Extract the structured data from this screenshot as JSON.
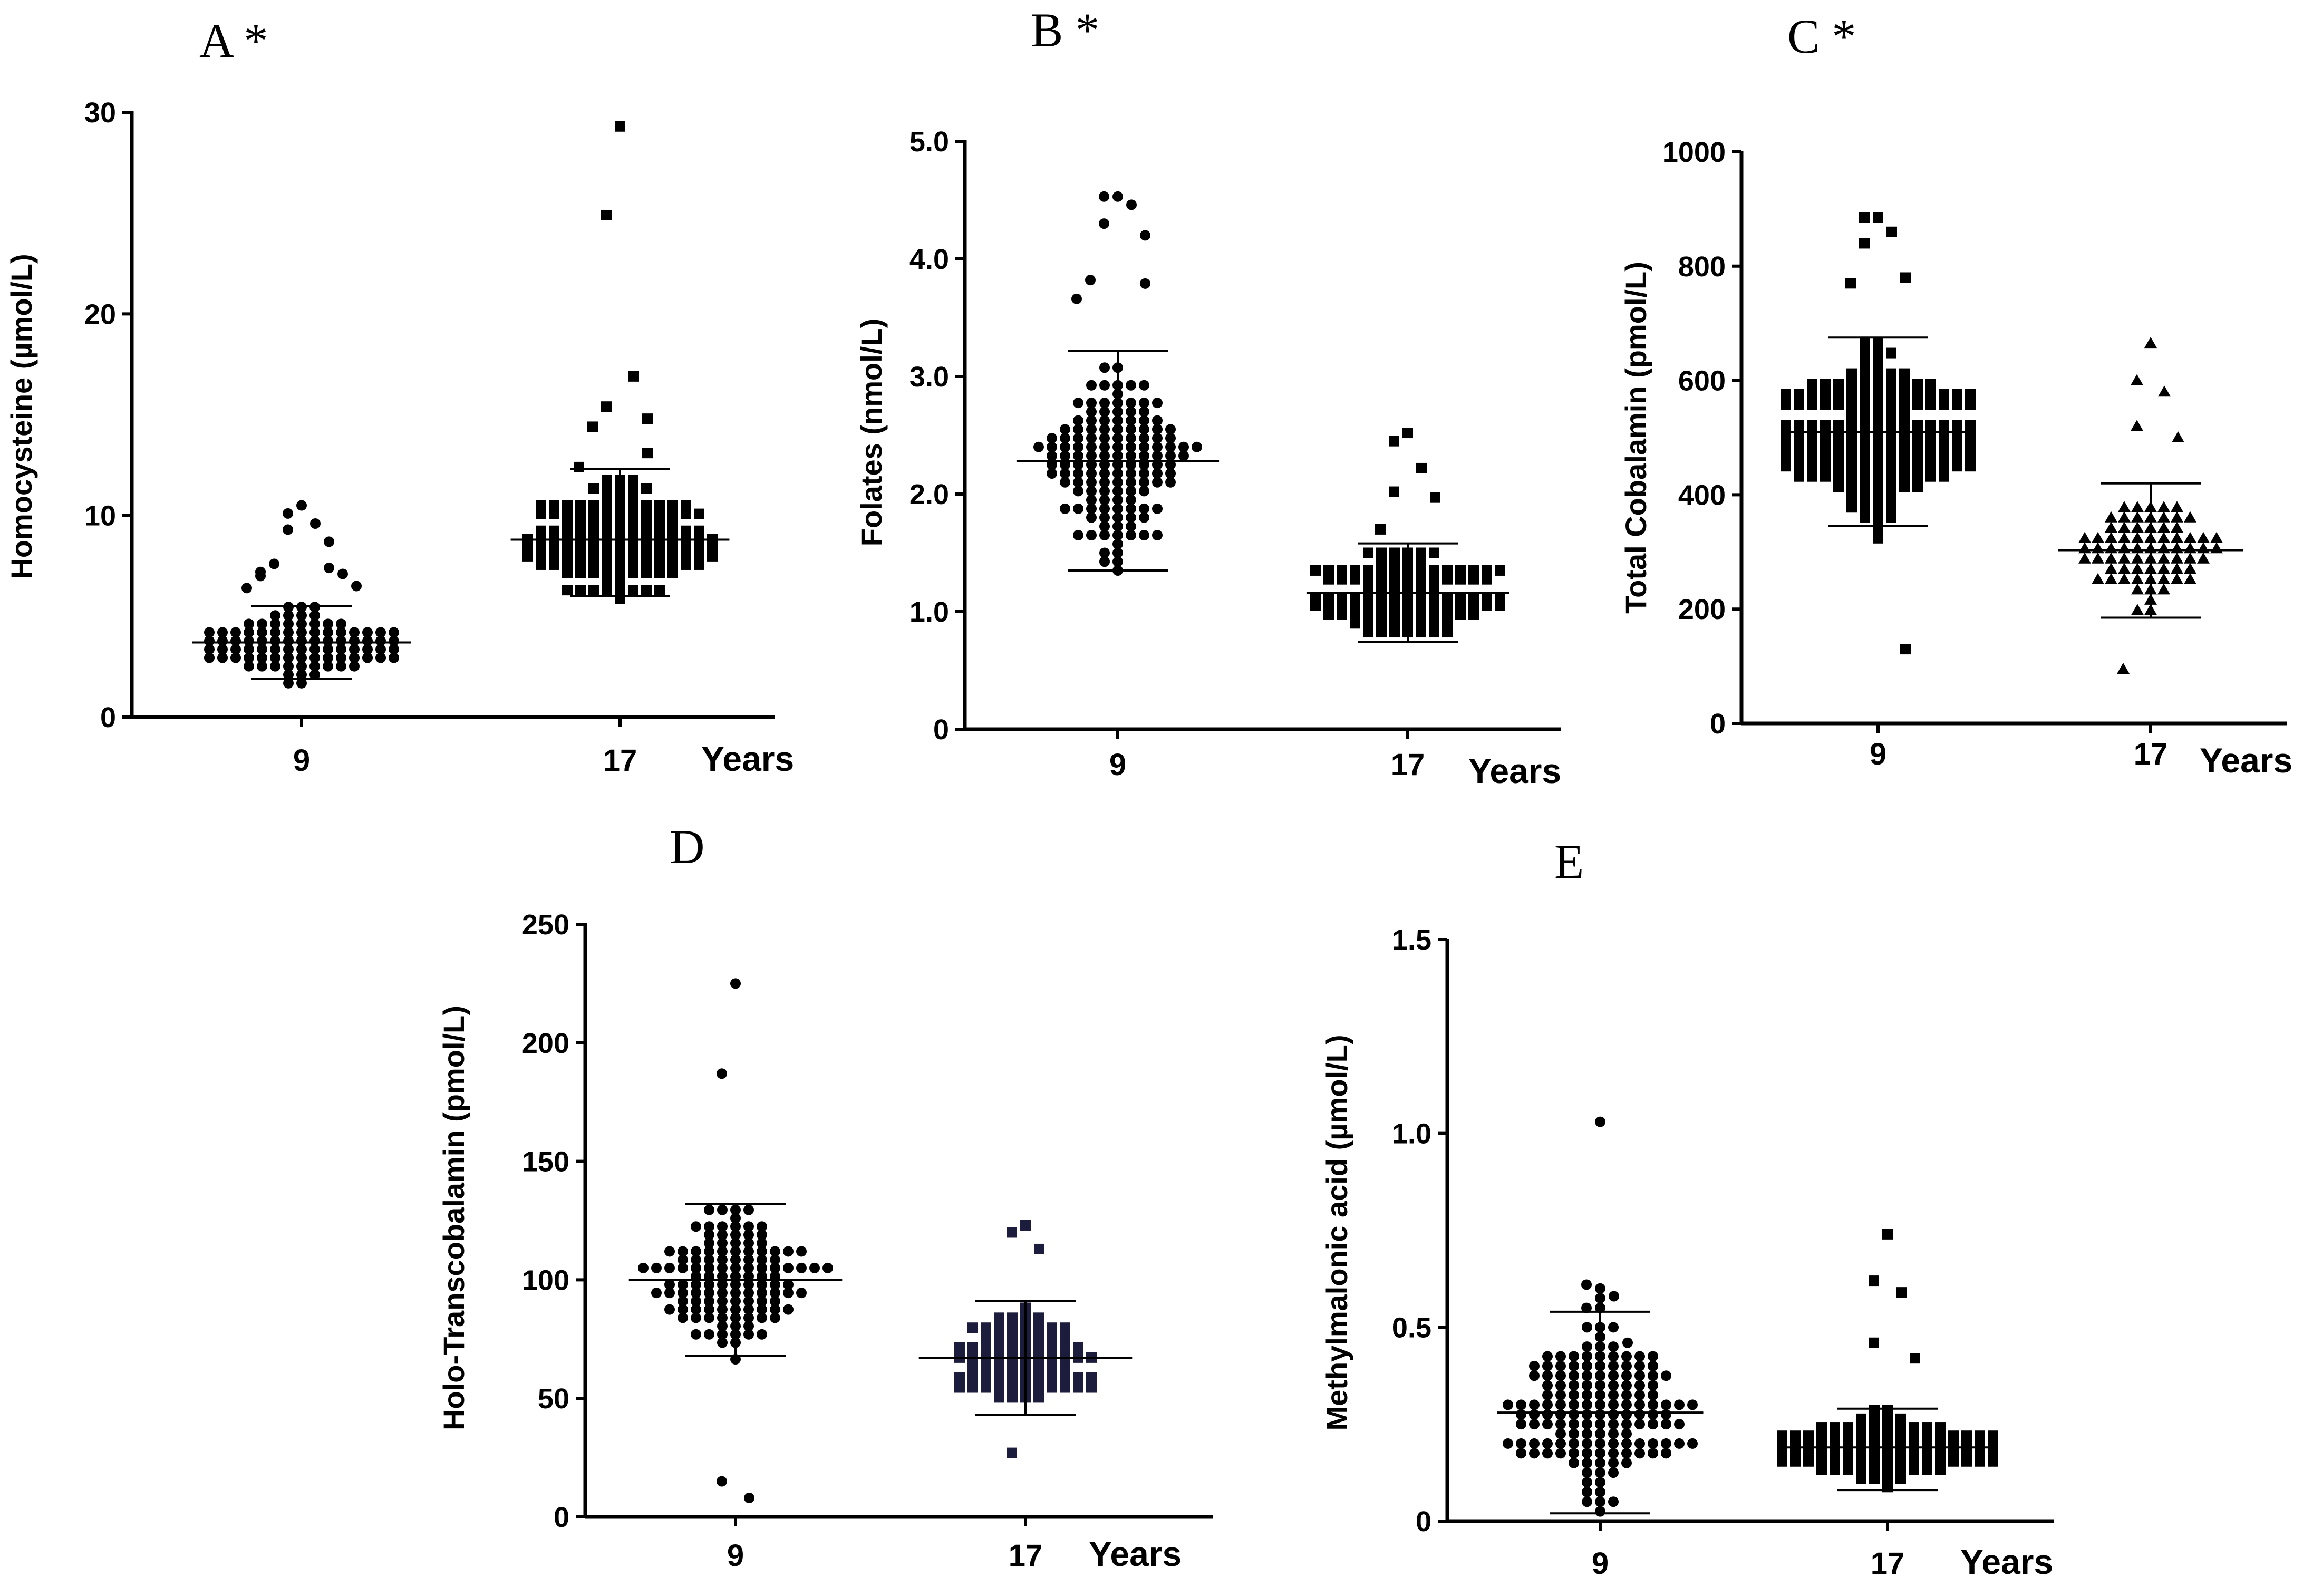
{
  "chart_data": [
    {
      "id": "A",
      "type": "scatter",
      "panel_label": "A *",
      "ylabel": "Homocysteine (µmol/L)",
      "xlabel": "Years",
      "ylim": [
        0,
        30
      ],
      "yticks": [
        0,
        10,
        20,
        30
      ],
      "ytick_labels": [
        "0",
        "10",
        "20",
        "30"
      ],
      "categories": [
        "9",
        "17"
      ],
      "marker_colors": [
        "#000000",
        "#000000"
      ],
      "series": [
        {
          "name": "9",
          "marker": "circle",
          "mean": 3.7,
          "sd_low": 1.9,
          "sd_high": 5.5,
          "values": [
            10.5,
            10.1,
            9.6,
            9.3,
            8.7,
            7.6,
            7.4,
            7.2,
            7.1,
            7.0,
            6.5,
            6.4
          ]
        },
        {
          "name": "17",
          "marker": "square",
          "mean": 8.8,
          "sd_low": 6.0,
          "sd_high": 12.3,
          "values": [
            29.3,
            24.9,
            16.9,
            15.4,
            14.8,
            14.4,
            13.1,
            12.4
          ]
        }
      ]
    },
    {
      "id": "B",
      "type": "scatter",
      "panel_label": "B *",
      "ylabel": "Folates (nmol/L)",
      "xlabel": "Years",
      "ylim": [
        0,
        5
      ],
      "yticks": [
        0,
        1,
        2,
        3,
        4,
        5
      ],
      "ytick_labels": [
        "0",
        "1.0",
        "2.0",
        "3.0",
        "4.0",
        "5.0"
      ],
      "categories": [
        "9",
        "17"
      ],
      "marker_colors": [
        "#000000",
        "#000000"
      ],
      "series": [
        {
          "name": "9",
          "marker": "circle",
          "mean": 2.28,
          "sd_low": 1.35,
          "sd_high": 3.22,
          "values": [
            4.53,
            4.53,
            4.46,
            4.3,
            4.2,
            3.82,
            3.79,
            3.66
          ]
        },
        {
          "name": "17",
          "marker": "square",
          "mean": 1.16,
          "sd_low": 0.74,
          "sd_high": 1.58,
          "values": [
            2.52,
            2.45,
            2.22,
            2.02,
            1.97,
            1.7
          ]
        }
      ]
    },
    {
      "id": "C",
      "type": "scatter",
      "panel_label": "C *",
      "ylabel": "Total Cobalamin (pmol/L)",
      "xlabel": "Years",
      "ylim": [
        0,
        1000
      ],
      "yticks": [
        0,
        200,
        400,
        600,
        800,
        1000
      ],
      "ytick_labels": [
        "0",
        "200",
        "400",
        "600",
        "800",
        "1000"
      ],
      "categories": [
        "9",
        "17"
      ],
      "marker_colors": [
        "#000000",
        "#000000"
      ],
      "series": [
        {
          "name": "9",
          "marker": "square",
          "mean": 510,
          "sd_low": 345,
          "sd_high": 675,
          "values": [
            885,
            885,
            860,
            840,
            780,
            770,
            130
          ]
        },
        {
          "name": "17",
          "marker": "triangle",
          "mean": 303,
          "sd_low": 185,
          "sd_high": 420,
          "values": [
            665,
            600,
            580,
            520,
            500,
            95
          ]
        }
      ]
    },
    {
      "id": "D",
      "type": "scatter",
      "panel_label": "D",
      "ylabel": "Holo-Transcobalamin (pmol/L)",
      "xlabel": "Years",
      "ylim": [
        0,
        250
      ],
      "yticks": [
        0,
        50,
        100,
        150,
        200,
        250
      ],
      "ytick_labels": [
        "0",
        "50",
        "100",
        "150",
        "200",
        "250"
      ],
      "categories": [
        "9",
        "17"
      ],
      "marker_colors": [
        "#000000",
        "#1c1c3c"
      ],
      "series": [
        {
          "name": "9",
          "marker": "circle",
          "mean": 100,
          "sd_low": 68,
          "sd_high": 132,
          "values": [
            225,
            187,
            8,
            15
          ]
        },
        {
          "name": "17",
          "marker": "square",
          "mean": 67,
          "sd_low": 43,
          "sd_high": 91,
          "values": [
            123,
            120,
            113,
            27
          ]
        }
      ]
    },
    {
      "id": "E",
      "type": "scatter",
      "panel_label": "E",
      "ylabel": "Methylmalonic acid (µmol/L)",
      "xlabel": "Years",
      "ylim": [
        0,
        1.5
      ],
      "yticks": [
        0,
        0.5,
        1.0,
        1.5
      ],
      "ytick_labels": [
        "0",
        "0.5",
        "1.0",
        "1.5"
      ],
      "categories": [
        "9",
        "17"
      ],
      "marker_colors": [
        "#000000",
        "#000000"
      ],
      "series": [
        {
          "name": "9",
          "marker": "circle",
          "mean": 0.28,
          "sd_low": 0.02,
          "sd_high": 0.54,
          "values": [
            1.03,
            0.61,
            0.58,
            0.55,
            0.46
          ]
        },
        {
          "name": "17",
          "marker": "square",
          "mean": 0.19,
          "sd_low": 0.08,
          "sd_high": 0.29,
          "values": [
            0.74,
            0.62,
            0.59,
            0.46,
            0.42
          ]
        }
      ]
    }
  ]
}
